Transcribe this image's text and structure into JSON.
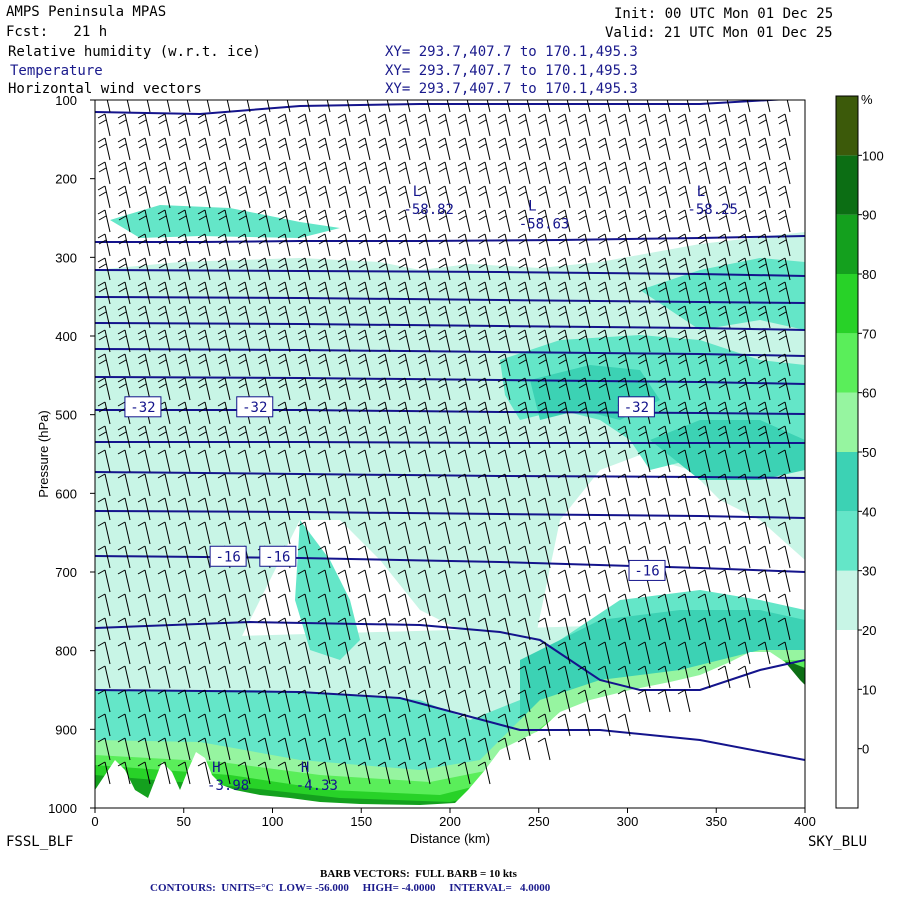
{
  "header": {
    "model": "AMPS Peninsula MPAS",
    "forecast": "Fcst:   21 h",
    "init": "Init: 00 UTC Mon 01 Dec 25",
    "valid": "Valid: 21 UTC Mon 01 Dec 25",
    "field1": "Relative humidity (w.r.t. ice)",
    "field2": "Temperature",
    "field3": "Horizontal wind vectors",
    "xy1": "XY= 293.7,407.7 to 170.1,495.3",
    "xy2": "XY= 293.7,407.7 to 170.1,495.3",
    "xy3": "XY= 293.7,407.7 to 170.1,495.3"
  },
  "endpoints": {
    "left": "FSSL_BLF",
    "right": "SKY_BLU"
  },
  "footer": {
    "barbs": "BARB VECTORS:  FULL BARB = 10 kts",
    "contours": "CONTOURS:  UNITS=°C  LOW= -56.000     HIGH= -4.0000     INTERVAL=   4.0000"
  },
  "colors": {
    "rh30": "#c8f5e6",
    "rh40": "#64e6c8",
    "rh50": "#3cd2b4",
    "rh60": "#96f5a0",
    "rh70": "#5aee5a",
    "rh80": "#28d228",
    "rh90": "#14a01e",
    "rh100": "#0c6e14",
    "rh_top": "#3c5a0a",
    "temp": "#14148c",
    "terrain": "#ffffff"
  },
  "chart_data": {
    "type": "heatmap",
    "title": "",
    "xlabel": "Distance (km)",
    "ylabel": "Pressure (hPa)",
    "xlim": [
      0,
      400
    ],
    "ylim": [
      1000,
      100
    ],
    "x_ticks": [
      0,
      50,
      100,
      150,
      200,
      250,
      300,
      350,
      400
    ],
    "y_ticks": [
      100,
      200,
      300,
      400,
      500,
      600,
      700,
      800,
      900,
      1000
    ],
    "colorbar": {
      "unit": "%",
      "ticks": [
        0,
        10,
        20,
        30,
        40,
        50,
        60,
        70,
        80,
        90,
        100
      ],
      "levels": [
        {
          "value": 30,
          "color": "#c8f5e6"
        },
        {
          "value": 40,
          "color": "#64e6c8"
        },
        {
          "value": 50,
          "color": "#3cd2b4"
        },
        {
          "value": 60,
          "color": "#96f5a0"
        },
        {
          "value": 70,
          "color": "#5aee5a"
        },
        {
          "value": 80,
          "color": "#28d228"
        },
        {
          "value": 90,
          "color": "#14a01e"
        },
        {
          "value": 100,
          "color": "#0c6e14"
        },
        {
          "value": 110,
          "color": "#3c5a0a"
        }
      ]
    },
    "temperature_labels": [
      {
        "text": "-32",
        "x": 27,
        "p": 490
      },
      {
        "text": "-32",
        "x": 90,
        "p": 490
      },
      {
        "text": "-32",
        "x": 305,
        "p": 490
      },
      {
        "text": "-16",
        "x": 75,
        "p": 680
      },
      {
        "text": "-16",
        "x": 103,
        "p": 680
      },
      {
        "text": "-16",
        "x": 311,
        "p": 698
      }
    ],
    "extrema": [
      {
        "kind": "L",
        "value": "-58.82",
        "x": 188,
        "p": 240
      },
      {
        "kind": "L",
        "value": "-58.63",
        "x": 253,
        "p": 258
      },
      {
        "kind": "L",
        "value": "-58.25",
        "x": 348,
        "p": 240
      },
      {
        "kind": "H",
        "value": "-3.98",
        "x": 75,
        "p": 972
      },
      {
        "kind": "H",
        "value": "-4.33",
        "x": 125,
        "p": 972
      }
    ]
  }
}
